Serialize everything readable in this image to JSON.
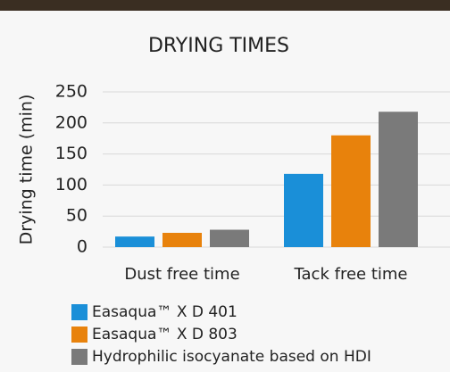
{
  "chart_data": {
    "type": "bar",
    "title": "DRYING TIMES",
    "y_label": "Drying time (min)",
    "categories": [
      "Dust free time",
      "Tack free time"
    ],
    "series": [
      {
        "name": "Easaqua™ X D 401",
        "color": "#1a8fd8",
        "values": [
          17,
          118
        ]
      },
      {
        "name": "Easaqua™ X D 803",
        "color": "#e8820c",
        "values": [
          23,
          180
        ]
      },
      {
        "name": "Hydrophilic isocyanate based on HDI",
        "color": "#7a7a7a",
        "values": [
          28,
          218
        ]
      }
    ],
    "ylim": [
      0,
      250
    ],
    "yticks": [
      0,
      50,
      100,
      150,
      200,
      250
    ],
    "grid": true
  }
}
